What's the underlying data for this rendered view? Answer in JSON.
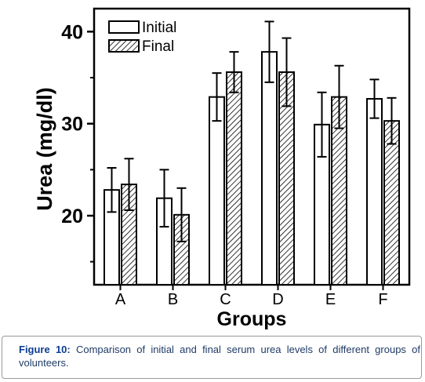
{
  "chart_data": {
    "type": "bar",
    "ylabel": "Urea (mg/dl)",
    "xlabel": "Groups",
    "ylim": [
      12.5,
      42.5
    ],
    "yticks_major": [
      20,
      30,
      40
    ],
    "yticks_minor": [
      15,
      25,
      35
    ],
    "categories": [
      "A",
      "B",
      "C",
      "D",
      "E",
      "F"
    ],
    "legend_position": "top-left",
    "grid": false,
    "series": [
      {
        "name": "Initial",
        "pattern": "solid-white",
        "values": [
          22.8,
          21.9,
          32.9,
          37.8,
          29.9,
          32.7
        ],
        "errors": [
          2.4,
          3.1,
          2.6,
          3.3,
          3.5,
          2.1
        ]
      },
      {
        "name": "Final",
        "pattern": "diagonal-hatch",
        "values": [
          23.4,
          20.1,
          35.6,
          35.6,
          32.9,
          30.3
        ],
        "errors": [
          2.8,
          2.9,
          2.2,
          3.7,
          3.4,
          2.5
        ]
      }
    ]
  },
  "caption": {
    "label": "Figure 10:",
    "text": " Comparison of initial and final serum urea levels of different groups of volunteers."
  }
}
